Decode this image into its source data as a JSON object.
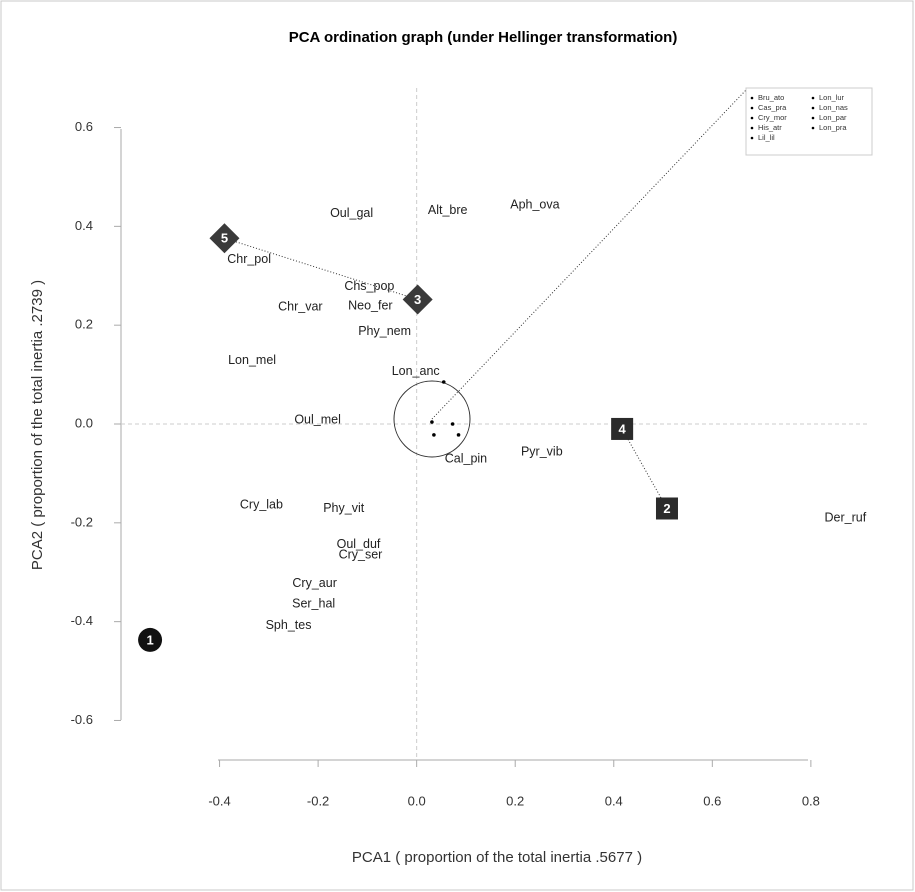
{
  "chart_data": {
    "type": "scatter",
    "title": "PCA ordination graph (under Hellinger transformation)",
    "x_label": "PCA1 ( proportion of the total inertia .5677 )",
    "y_label": "PCA2 ( proportion of the total inertia .2739 )",
    "xlim": [
      -0.6,
      0.92
    ],
    "ylim": [
      -0.68,
      0.68
    ],
    "xticks": [
      -0.4,
      -0.2,
      {
        "value": 0,
        "label": "0.0"
      },
      0.2,
      0.4,
      0.6,
      0.8
    ],
    "yticks": [
      0.6,
      0.4,
      0.2,
      {
        "value": 0,
        "label": "0.0"
      },
      -0.2,
      -0.4,
      -0.6
    ],
    "zero_lines": true,
    "label_color": "#222222",
    "points": {
      "labels": [
        "Oul_gal",
        "Alt_bre",
        "Aph_ova",
        "Chr_pol",
        "Chs_pop",
        "Neo_fer",
        "Chr_var",
        "Phy_nem",
        "Lon_mel",
        "Lon_anc",
        "Oul_mel",
        "Cal_pin",
        "Pyr_vib",
        "Cry_lab",
        "Phy_vit",
        "Oul_duf",
        "Cry_ser",
        "Cry_aur",
        "Ser_hal",
        "Sph_tes",
        "Der_ruf"
      ],
      "x": [
        -0.132,
        0.063,
        0.24,
        -0.34,
        -0.096,
        -0.094,
        -0.236,
        -0.065,
        -0.334,
        -0.002,
        -0.201,
        0.1,
        0.254,
        -0.315,
        -0.148,
        -0.118,
        -0.114,
        -0.207,
        -0.209,
        -0.26,
        0.87
      ],
      "y": [
        0.426,
        0.432,
        0.443,
        0.333,
        0.278,
        0.238,
        0.236,
        0.187,
        0.128,
        0.106,
        0.008,
        -0.071,
        -0.057,
        -0.164,
        -0.171,
        -0.244,
        -0.266,
        -0.323,
        -0.365,
        -0.408,
        -0.191
      ]
    },
    "inset_points": {
      "x": [
        0.055,
        0.031,
        0.073,
        0.035,
        0.085
      ],
      "y": [
        0.085,
        0.004,
        0.0,
        -0.022,
        -0.022
      ],
      "color": "#000000"
    },
    "inset_legend": [
      "Bru_ato",
      "Cas_pra",
      "Cry_mor",
      "His_atr",
      "Lil_lil",
      "Lon_lur",
      "Lon_nas",
      "Lon_par",
      "Lon_pra"
    ],
    "markers": [
      {
        "label": "1",
        "x": -0.541,
        "y": -0.437,
        "shape": "circle",
        "color": "#111111"
      },
      {
        "label": "2",
        "x": 0.508,
        "y": -0.171,
        "shape": "square",
        "color": "#2b2b2b"
      },
      {
        "label": "3",
        "x": 0.002,
        "y": 0.252,
        "shape": "diamond",
        "color": "#3a3a3a"
      },
      {
        "label": "4",
        "x": 0.417,
        "y": -0.01,
        "shape": "square",
        "color": "#2b2b2b"
      },
      {
        "label": "5",
        "x": -0.39,
        "y": 0.376,
        "shape": "diamond",
        "color": "#3a3a3a"
      }
    ]
  }
}
